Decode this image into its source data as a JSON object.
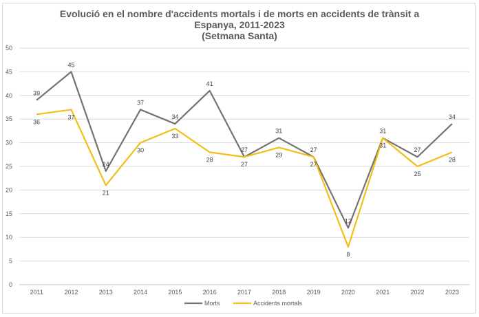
{
  "chart_data": {
    "type": "line",
    "title_lines": [
      "Evolució en el nombre d'accidents mortals i de morts en accidents de trànsit a",
      "Espanya, 2011-2023",
      "(Setmana Santa)"
    ],
    "xlabel": "",
    "ylabel": "",
    "categories": [
      "2011",
      "2012",
      "2013",
      "2014",
      "2015",
      "2016",
      "2017",
      "2018",
      "2019",
      "2020",
      "2021",
      "2022",
      "2023"
    ],
    "ylim": [
      0,
      50
    ],
    "yticks": [
      0,
      5,
      10,
      15,
      20,
      25,
      30,
      35,
      40,
      45,
      50
    ],
    "grid": true,
    "legend_position": "bottom",
    "series": [
      {
        "name": "Morts",
        "color": "#767171",
        "values": [
          39,
          45,
          24,
          37,
          34,
          41,
          27,
          31,
          27,
          12,
          31,
          27,
          34
        ]
      },
      {
        "name": "Accidents mortals",
        "color": "#F2BE14",
        "values": [
          36,
          37,
          21,
          30,
          33,
          28,
          27,
          29,
          27,
          8,
          31,
          25,
          28
        ]
      }
    ]
  }
}
